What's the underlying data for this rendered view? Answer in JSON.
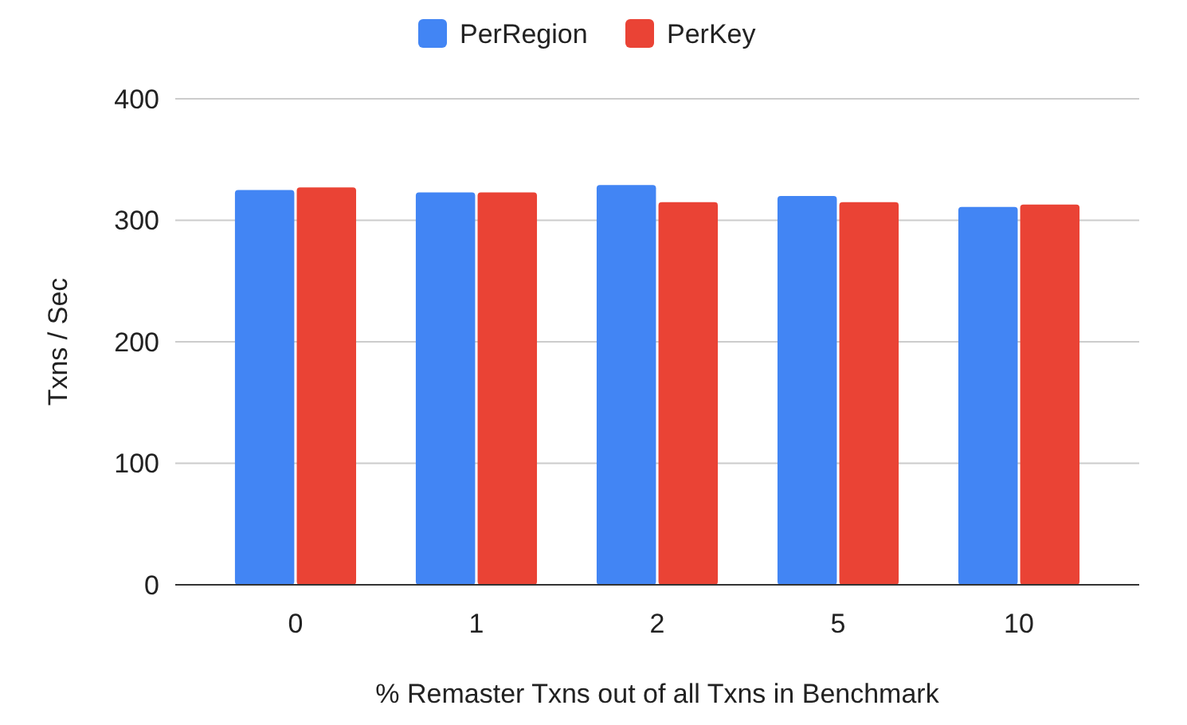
{
  "chart_data": {
    "type": "bar",
    "xlabel": "% Remaster Txns out of all Txns in Benchmark",
    "ylabel": "Txns / Sec",
    "categories": [
      "0",
      "1",
      "2",
      "5",
      "10"
    ],
    "series": [
      {
        "name": "PerRegion",
        "color": "#4285f4",
        "values": [
          325,
          323,
          329,
          320,
          311
        ]
      },
      {
        "name": "PerKey",
        "color": "#ea4335",
        "values": [
          327,
          323,
          315,
          315,
          313
        ]
      }
    ],
    "ylim": [
      0,
      400
    ],
    "yticks": [
      0,
      100,
      200,
      300,
      400
    ],
    "grid": "y",
    "legend": "top"
  }
}
